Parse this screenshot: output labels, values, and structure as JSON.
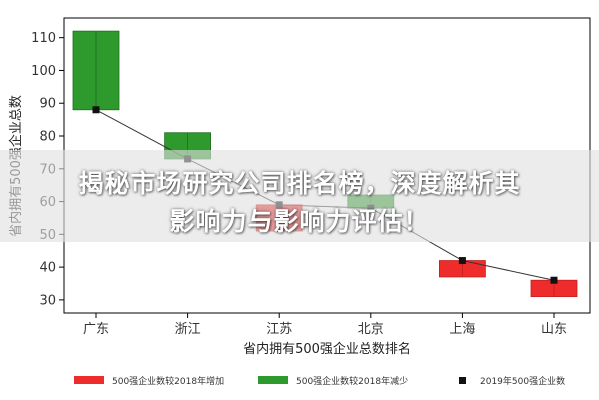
{
  "chart_data": {
    "type": "bar",
    "subtype": "waterfall-range",
    "categories": [
      "广东",
      "浙江",
      "江苏",
      "北京",
      "上海",
      "山东"
    ],
    "y_2018": [
      112,
      81,
      51,
      62,
      37,
      31
    ],
    "y_2019": [
      88,
      73,
      59,
      58,
      42,
      36
    ],
    "xlabel": "省内拥有500强企业总数排名",
    "ylabel": "省内拥有500强企业总数",
    "ylim": [
      26,
      116
    ],
    "yticks": [
      30,
      40,
      50,
      60,
      70,
      80,
      90,
      100,
      110
    ],
    "grid": false,
    "legend_position": "bottom",
    "legend": {
      "increase": "500强企业数较2018年增加",
      "decrease": "500强企业数较2018年减少",
      "point": "2019年500强企业数"
    },
    "colors": {
      "increase": "#ee2c2c",
      "decrease": "#2e9a2e",
      "point": "#111111",
      "line": "#333333"
    }
  },
  "overlay": {
    "line1": "揭秘市场研究公司排名榜，深度解析其",
    "line2": "影响力与影响力评估！"
  }
}
